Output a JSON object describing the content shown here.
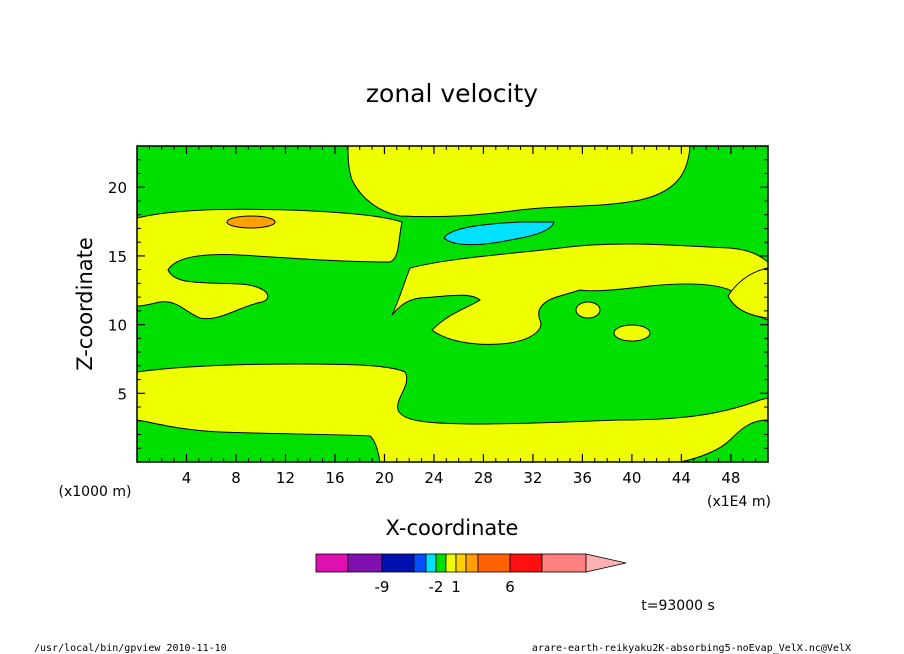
{
  "chart_data": {
    "type": "heatmap",
    "title": "zonal velocity",
    "xlabel": "X-coordinate",
    "ylabel": "Z-coordinate",
    "x_unit": "(x1E4 m)",
    "y_unit": "(x1000 m)",
    "xlim": [
      0,
      51
    ],
    "ylim": [
      0,
      23
    ],
    "x_ticks": [
      4,
      8,
      12,
      16,
      20,
      24,
      28,
      32,
      36,
      40,
      44,
      48
    ],
    "y_ticks": [
      5,
      10,
      15,
      20
    ],
    "x_tick_labels": [
      "4",
      "8",
      "12",
      "16",
      "20",
      "24",
      "28",
      "32",
      "36",
      "40",
      "44",
      "48"
    ],
    "y_tick_labels": [
      "5",
      "10",
      "15",
      "20"
    ],
    "colorbar": {
      "colors": [
        "#e010b0",
        "#8010b0",
        "#0010b0",
        "#0050ff",
        "#00e0ff",
        "#00e000",
        "#f0ff00",
        "#ffd000",
        "#ffa000",
        "#ff6000",
        "#ff1010",
        "#ff8080",
        "#ffb0b0"
      ],
      "labels": [
        "-9",
        "-2",
        "1",
        "6"
      ]
    },
    "time_label": "t=93000 s",
    "colors": {
      "background_level": "#00e000",
      "positive_level": "#f0ff00",
      "stronger_positive_level": "#ffa000",
      "negative_level": "#00e0ff"
    }
  },
  "footer": {
    "left": "/usr/local/bin/gpview  2010-11-10",
    "right": "arare-earth-reikyaku2K-absorbing5-noEvap_VelX.nc@VelX"
  }
}
